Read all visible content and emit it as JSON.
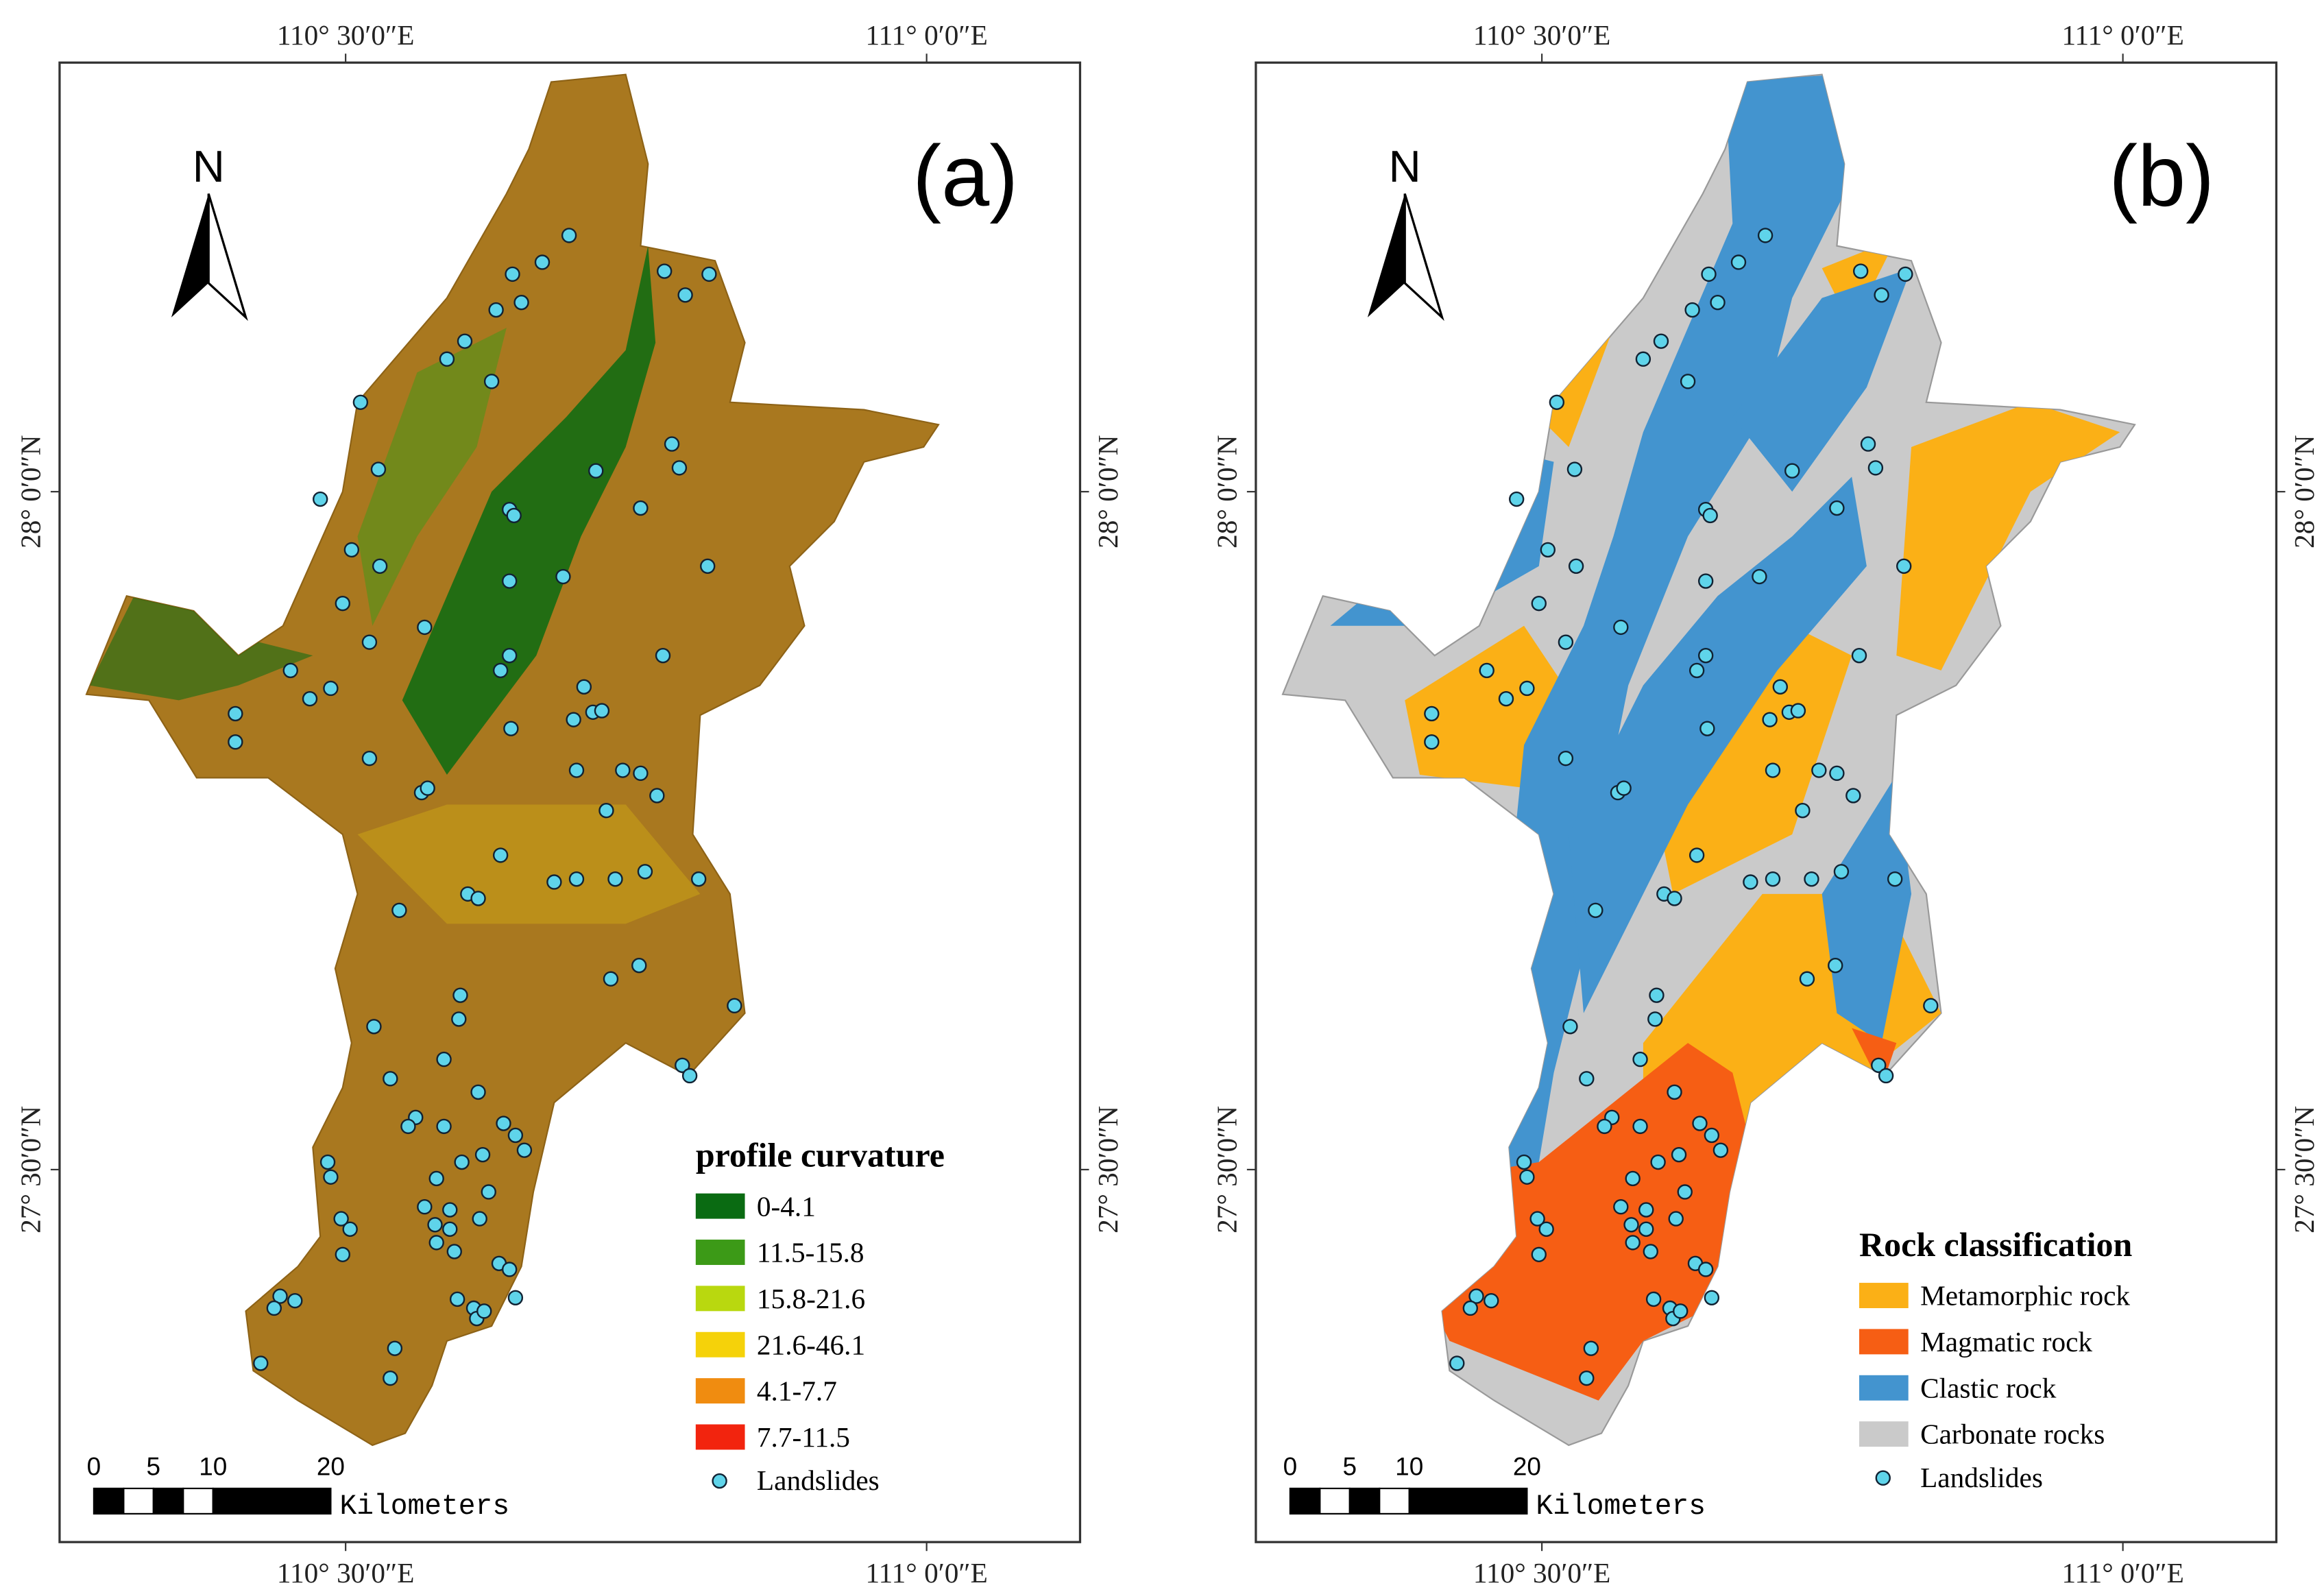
{
  "panels": [
    {
      "label": "(a)",
      "top_labels": [
        "110° 30′0″E",
        "111° 0′0″E"
      ],
      "bottom_labels": [
        "110° 30′0″E",
        "111° 0′0″E"
      ],
      "left_labels": [
        "28° 0′0″N",
        "27° 30′0″N"
      ],
      "right_labels": [
        "28° 0′0″N",
        "27° 30′0″N"
      ],
      "north": "N",
      "legend": {
        "title": "profile curvature",
        "items": [
          {
            "label": "0-4.1",
            "color": "#0a6b12"
          },
          {
            "label": "11.5-15.8",
            "color": "#3c9a17"
          },
          {
            "label": "15.8-21.6",
            "color": "#b9d80f"
          },
          {
            "label": "21.6-46.1",
            "color": "#f5d20a"
          },
          {
            "label": "4.1-7.7",
            "color": "#f08c10"
          },
          {
            "label": "7.7-11.5",
            "color": "#f2240e"
          }
        ],
        "points_label": "Landslides"
      },
      "scalebar": {
        "ticks": [
          "0",
          "5",
          "10",
          "20"
        ],
        "unit": "Kilometers"
      }
    },
    {
      "label": "(b)",
      "top_labels": [
        "110° 30′0″E",
        "111° 0′0″E"
      ],
      "bottom_labels": [
        "110° 30′0″E",
        "111° 0′0″E"
      ],
      "left_labels": [
        "28° 0′0″N",
        "27° 30′0″N"
      ],
      "right_labels": [
        "28° 0′0″N",
        "27° 30′0″N"
      ],
      "north": "N",
      "legend": {
        "title": "Rock classification",
        "items": [
          {
            "label": "Metamorphic rock",
            "color": "#fbb016"
          },
          {
            "label": "Magmatic rock",
            "color": "#f65e14"
          },
          {
            "label": "Clastic rock",
            "color": "#4394cf"
          },
          {
            "label": "Carbonate rocks",
            "color": "#cacaca"
          }
        ],
        "points_label": "Landslides"
      },
      "scalebar": {
        "ticks": [
          "0",
          "5",
          "10",
          "20"
        ],
        "unit": "Kilometers"
      }
    }
  ]
}
